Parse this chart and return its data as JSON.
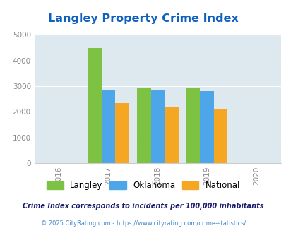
{
  "title": "Langley Property Crime Index",
  "years": [
    2016,
    2017,
    2018,
    2019,
    2020
  ],
  "bar_years": [
    2017,
    2018,
    2019
  ],
  "langley": [
    4500,
    2950,
    2950
  ],
  "oklahoma": [
    2860,
    2860,
    2820
  ],
  "national": [
    2350,
    2190,
    2120
  ],
  "bar_width": 0.28,
  "colors": {
    "langley": "#7DC242",
    "oklahoma": "#4DA6E8",
    "national": "#F5A623"
  },
  "ylim": [
    0,
    5000
  ],
  "yticks": [
    0,
    1000,
    2000,
    3000,
    4000,
    5000
  ],
  "bg_color": "#DDE9EE",
  "title_color": "#1060C0",
  "title_fontsize": 11.5,
  "legend_labels": [
    "Langley",
    "Oklahoma",
    "National"
  ],
  "footnote1": "Crime Index corresponds to incidents per 100,000 inhabitants",
  "footnote2": "© 2025 CityRating.com - https://www.cityrating.com/crime-statistics/",
  "footnote1_color": "#1a1a6e",
  "footnote2_color": "#4488cc"
}
